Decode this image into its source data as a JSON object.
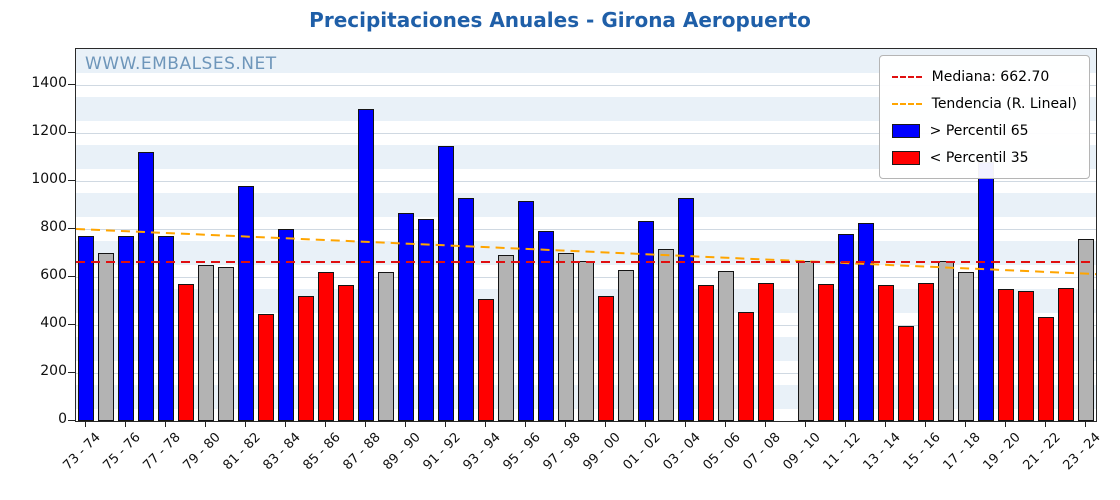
{
  "title": "Precipitaciones Anuales - Girona Aeropuerto",
  "watermark": "WWW.EMBALSES.NET",
  "legend": {
    "median_label": "Mediana: 662.70",
    "trend_label": "Tendencia (R. Lineal)",
    "above_label": "> Percentil 65",
    "below_label": "< Percentil 35"
  },
  "chart_data": {
    "type": "bar",
    "title": "Precipitaciones Anuales - Girona Aeropuerto",
    "xlabel": "",
    "ylabel": "",
    "ylim": [
      0,
      1550
    ],
    "yticks": [
      0,
      200,
      400,
      600,
      800,
      1000,
      1200,
      1400
    ],
    "grid": true,
    "legend_position": "upper right",
    "median": 662.7,
    "trend": {
      "start": 800,
      "end": 612
    },
    "palette": {
      "above": "#0000ff",
      "below": "#ff0000",
      "mid": "#b3b3b3",
      "median_line": "#e01010",
      "trend_line": "#ffa500",
      "title": "#1f5fa8",
      "watermark": "#6e96ba"
    },
    "bars": [
      {
        "year": "73 - 74",
        "value": 770,
        "band": "above"
      },
      {
        "year": "74 - 75",
        "value": 700,
        "band": "mid"
      },
      {
        "year": "75 - 76",
        "value": 770,
        "band": "above"
      },
      {
        "year": "76 - 77",
        "value": 1120,
        "band": "above"
      },
      {
        "year": "77 - 78",
        "value": 770,
        "band": "above"
      },
      {
        "year": "78 - 79",
        "value": 570,
        "band": "below"
      },
      {
        "year": "79 - 80",
        "value": 650,
        "band": "mid"
      },
      {
        "year": "80 - 81",
        "value": 640,
        "band": "mid"
      },
      {
        "year": "81 - 82",
        "value": 980,
        "band": "above"
      },
      {
        "year": "82 - 83",
        "value": 445,
        "band": "below"
      },
      {
        "year": "83 - 84",
        "value": 800,
        "band": "above"
      },
      {
        "year": "84 - 85",
        "value": 520,
        "band": "below"
      },
      {
        "year": "85 - 86",
        "value": 620,
        "band": "below"
      },
      {
        "year": "86 - 87",
        "value": 565,
        "band": "below"
      },
      {
        "year": "87 - 88",
        "value": 1300,
        "band": "above"
      },
      {
        "year": "88 - 89",
        "value": 620,
        "band": "mid"
      },
      {
        "year": "89 - 90",
        "value": 865,
        "band": "above"
      },
      {
        "year": "90 - 91",
        "value": 840,
        "band": "above"
      },
      {
        "year": "91 - 92",
        "value": 1145,
        "band": "above"
      },
      {
        "year": "92 - 93",
        "value": 930,
        "band": "above"
      },
      {
        "year": "93 - 94",
        "value": 510,
        "band": "below"
      },
      {
        "year": "94 - 95",
        "value": 690,
        "band": "mid"
      },
      {
        "year": "95 - 96",
        "value": 915,
        "band": "above"
      },
      {
        "year": "96 - 97",
        "value": 790,
        "band": "above"
      },
      {
        "year": "97 - 98",
        "value": 700,
        "band": "mid"
      },
      {
        "year": "98 - 99",
        "value": 665,
        "band": "mid"
      },
      {
        "year": "99 - 00",
        "value": 520,
        "band": "below"
      },
      {
        "year": "00 - 01",
        "value": 630,
        "band": "mid"
      },
      {
        "year": "01 - 02",
        "value": 835,
        "band": "above"
      },
      {
        "year": "02 - 03",
        "value": 715,
        "band": "mid"
      },
      {
        "year": "03 - 04",
        "value": 930,
        "band": "above"
      },
      {
        "year": "04 - 05",
        "value": 565,
        "band": "below"
      },
      {
        "year": "05 - 06",
        "value": 625,
        "band": "mid"
      },
      {
        "year": "06 - 07",
        "value": 455,
        "band": "below"
      },
      {
        "year": "07 - 08",
        "value": 575,
        "band": "below"
      },
      {
        "year": "08 - 09",
        "value": null,
        "band": "none"
      },
      {
        "year": "09 - 10",
        "value": 665,
        "band": "mid"
      },
      {
        "year": "10 - 11",
        "value": 570,
        "band": "below"
      },
      {
        "year": "11 - 12",
        "value": 780,
        "band": "above"
      },
      {
        "year": "12 - 13",
        "value": 825,
        "band": "above"
      },
      {
        "year": "13 - 14",
        "value": 565,
        "band": "below"
      },
      {
        "year": "14 - 15",
        "value": 395,
        "band": "below"
      },
      {
        "year": "15 - 16",
        "value": 575,
        "band": "below"
      },
      {
        "year": "16 - 17",
        "value": 665,
        "band": "mid"
      },
      {
        "year": "17 - 18",
        "value": 620,
        "band": "mid"
      },
      {
        "year": "18 - 19",
        "value": 1080,
        "band": "above"
      },
      {
        "year": "19 - 20",
        "value": 550,
        "band": "below"
      },
      {
        "year": "20 - 21",
        "value": 540,
        "band": "below"
      },
      {
        "year": "21 - 22",
        "value": 435,
        "band": "below"
      },
      {
        "year": "22 - 23",
        "value": 555,
        "band": "below"
      },
      {
        "year": "23 - 24",
        "value": 760,
        "band": "mid"
      }
    ]
  }
}
